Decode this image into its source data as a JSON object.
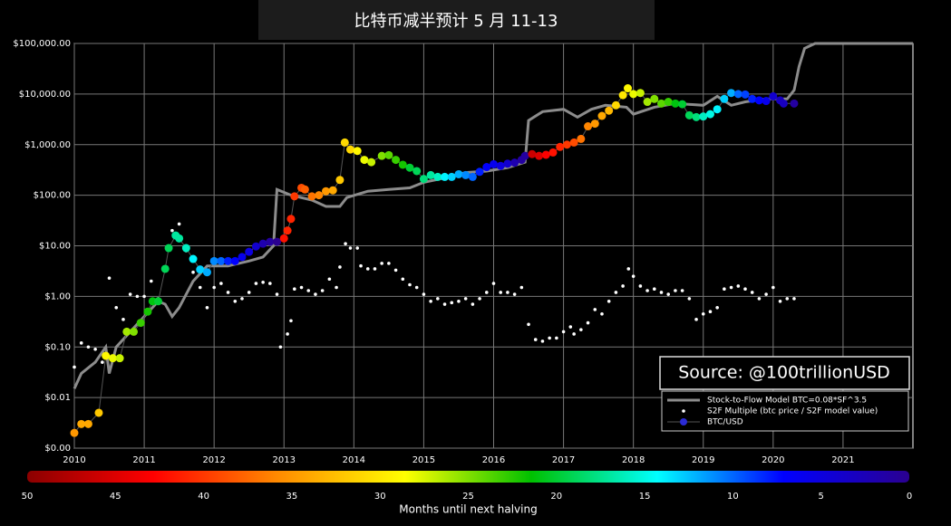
{
  "chart_data": {
    "type": "log-time",
    "title": "比特币减半预计 5 月 11-13",
    "annotation": "Source:  @100trillionUSD",
    "xlim": [
      2010,
      2022
    ],
    "xticks": [
      2010,
      2011,
      2012,
      2013,
      2014,
      2015,
      2016,
      2017,
      2018,
      2019,
      2020,
      2021
    ],
    "ylim": [
      0.001,
      100000
    ],
    "ylog": true,
    "grid": true,
    "legend": "lower-right",
    "yticks": [
      {
        "value": 0.001,
        "label": "$0.00"
      },
      {
        "value": 0.01,
        "label": "$0.01"
      },
      {
        "value": 0.1,
        "label": "$0.10"
      },
      {
        "value": 1,
        "label": "$1.00"
      },
      {
        "value": 10,
        "label": "$10.00"
      },
      {
        "value": 100,
        "label": "$100.00"
      },
      {
        "value": 1000,
        "label": "$1,000.00"
      },
      {
        "value": 10000,
        "label": "$10,000.00"
      },
      {
        "value": 100000,
        "label": "$100,000.00"
      }
    ],
    "series": [
      {
        "name": "Stock-to-Flow Model BTC=0.08*SF^3.5",
        "style": "line",
        "color": "#8c8c8c",
        "x": [
          2010.0,
          2010.1,
          2010.3,
          2010.45,
          2010.5,
          2010.6,
          2010.8,
          2011.0,
          2011.2,
          2011.3,
          2011.4,
          2011.5,
          2011.7,
          2011.9,
          2012.2,
          2012.5,
          2012.7,
          2012.85,
          2012.9,
          2013.1,
          2013.4,
          2013.6,
          2013.8,
          2013.9,
          2014.2,
          2014.5,
          2014.8,
          2015.0,
          2015.3,
          2015.6,
          2015.9,
          2016.2,
          2016.45,
          2016.5,
          2016.7,
          2017.0,
          2017.2,
          2017.4,
          2017.6,
          2017.9,
          2018.0,
          2018.3,
          2018.6,
          2019.0,
          2019.2,
          2019.4,
          2019.6,
          2019.9,
          2020.2,
          2020.3,
          2020.37,
          2020.45,
          2020.6,
          2022.0
        ],
        "values": [
          0.015,
          0.03,
          0.05,
          0.1,
          0.03,
          0.1,
          0.2,
          0.4,
          0.8,
          0.7,
          0.4,
          0.6,
          2,
          4,
          4,
          5,
          6,
          10,
          130,
          100,
          80,
          60,
          60,
          90,
          120,
          130,
          140,
          180,
          220,
          280,
          300,
          350,
          450,
          3000,
          4500,
          5000,
          3500,
          5000,
          6000,
          5500,
          4000,
          5500,
          6500,
          6000,
          9000,
          6000,
          7000,
          8000,
          8000,
          12000,
          35000,
          80000,
          100000,
          100000
        ]
      },
      {
        "name": "S2F Multiple (btc price / S2F model value)",
        "style": "dots",
        "color": "#ffffff",
        "x": [
          2010.0,
          2010.1,
          2010.2,
          2010.3,
          2010.4,
          2010.5,
          2010.6,
          2010.7,
          2010.8,
          2010.9,
          2011.0,
          2011.1,
          2011.2,
          2011.4,
          2011.5,
          2011.6,
          2011.7,
          2011.8,
          2011.9,
          2012.0,
          2012.1,
          2012.2,
          2012.3,
          2012.4,
          2012.5,
          2012.6,
          2012.7,
          2012.8,
          2012.9,
          2012.95,
          2013.05,
          2013.1,
          2013.15,
          2013.25,
          2013.35,
          2013.45,
          2013.55,
          2013.65,
          2013.75,
          2013.8,
          2013.88,
          2013.95,
          2014.05,
          2014.1,
          2014.2,
          2014.3,
          2014.4,
          2014.5,
          2014.6,
          2014.7,
          2014.8,
          2014.9,
          2015.0,
          2015.1,
          2015.2,
          2015.3,
          2015.4,
          2015.5,
          2015.6,
          2015.7,
          2015.8,
          2015.9,
          2016.0,
          2016.1,
          2016.2,
          2016.3,
          2016.4,
          2016.5,
          2016.6,
          2016.7,
          2016.8,
          2016.9,
          2017.0,
          2017.1,
          2017.15,
          2017.25,
          2017.35,
          2017.45,
          2017.55,
          2017.65,
          2017.75,
          2017.85,
          2017.93,
          2018.0,
          2018.1,
          2018.2,
          2018.3,
          2018.4,
          2018.5,
          2018.6,
          2018.7,
          2018.8,
          2018.9,
          2019.0,
          2019.1,
          2019.2,
          2019.3,
          2019.4,
          2019.5,
          2019.6,
          2019.7,
          2019.8,
          2019.9,
          2020.0,
          2020.1,
          2020.2,
          2020.3
        ],
        "values": [
          0.04,
          0.12,
          0.1,
          0.09,
          0.05,
          2.3,
          0.6,
          0.35,
          1.1,
          1.0,
          1.0,
          2,
          0.9,
          20,
          27,
          8,
          3,
          1.5,
          0.6,
          1.5,
          1.8,
          1.2,
          0.8,
          0.9,
          1.2,
          1.8,
          1.9,
          1.8,
          1.1,
          0.1,
          0.18,
          0.33,
          1.4,
          1.5,
          1.3,
          1.1,
          1.3,
          2.2,
          1.5,
          3.8,
          11,
          9,
          9,
          4,
          3.5,
          3.5,
          4.5,
          4.5,
          3.3,
          2.2,
          1.7,
          1.5,
          1.1,
          0.8,
          0.9,
          0.7,
          0.75,
          0.8,
          0.9,
          0.7,
          0.9,
          1.2,
          1.8,
          1.2,
          1.2,
          1.1,
          1.5,
          0.28,
          0.14,
          0.13,
          0.15,
          0.15,
          0.2,
          0.25,
          0.18,
          0.22,
          0.3,
          0.55,
          0.45,
          0.8,
          1.2,
          1.6,
          3.5,
          2.5,
          1.6,
          1.3,
          1.4,
          1.2,
          1.1,
          1.3,
          1.3,
          0.9,
          0.35,
          0.45,
          0.5,
          0.6,
          1.4,
          1.5,
          1.6,
          1.4,
          1.2,
          0.9,
          1.1,
          1.5,
          0.8,
          0.9,
          0.9
        ]
      },
      {
        "name": "BTC/USD",
        "style": "colored-dots",
        "color": "#2b2bd6",
        "x": [
          2010.0,
          2010.1,
          2010.2,
          2010.35,
          2010.45,
          2010.55,
          2010.65,
          2010.75,
          2010.85,
          2010.95,
          2011.05,
          2011.12,
          2011.2,
          2011.3,
          2011.35,
          2011.45,
          2011.5,
          2011.6,
          2011.7,
          2011.8,
          2011.9,
          2012.0,
          2012.1,
          2012.2,
          2012.3,
          2012.4,
          2012.5,
          2012.6,
          2012.7,
          2012.8,
          2012.9,
          2013.0,
          2013.05,
          2013.1,
          2013.15,
          2013.25,
          2013.3,
          2013.4,
          2013.5,
          2013.6,
          2013.7,
          2013.8,
          2013.87,
          2013.95,
          2014.05,
          2014.15,
          2014.25,
          2014.4,
          2014.5,
          2014.6,
          2014.7,
          2014.8,
          2014.9,
          2015.0,
          2015.1,
          2015.2,
          2015.3,
          2015.4,
          2015.5,
          2015.6,
          2015.7,
          2015.8,
          2015.9,
          2016.0,
          2016.1,
          2016.2,
          2016.3,
          2016.4,
          2016.45,
          2016.55,
          2016.65,
          2016.75,
          2016.85,
          2016.95,
          2017.05,
          2017.15,
          2017.25,
          2017.35,
          2017.45,
          2017.55,
          2017.65,
          2017.75,
          2017.85,
          2017.92,
          2018.0,
          2018.1,
          2018.2,
          2018.3,
          2018.4,
          2018.5,
          2018.6,
          2018.7,
          2018.8,
          2018.9,
          2019.0,
          2019.1,
          2019.2,
          2019.3,
          2019.4,
          2019.5,
          2019.6,
          2019.7,
          2019.8,
          2019.9,
          2020.0,
          2020.1,
          2020.15,
          2020.3
        ],
        "values": [
          0.002,
          0.003,
          0.003,
          0.005,
          0.067,
          0.06,
          0.06,
          0.2,
          0.2,
          0.3,
          0.5,
          0.8,
          0.8,
          3.5,
          9,
          16,
          14,
          9,
          5.5,
          3.4,
          3,
          5,
          5,
          5,
          5,
          6,
          7.6,
          9.7,
          11,
          12,
          12,
          14,
          20,
          34,
          95,
          140,
          130,
          95,
          100,
          120,
          125,
          200,
          1100,
          800,
          750,
          500,
          450,
          600,
          620,
          500,
          400,
          350,
          300,
          210,
          250,
          230,
          230,
          230,
          260,
          250,
          230,
          290,
          360,
          410,
          380,
          420,
          440,
          500,
          600,
          650,
          600,
          630,
          700,
          900,
          1000,
          1100,
          1300,
          2300,
          2600,
          3700,
          4700,
          6000,
          9500,
          13000,
          10000,
          10500,
          7000,
          8000,
          6500,
          7000,
          6500,
          6300,
          3800,
          3500,
          3600,
          4000,
          5000,
          8000,
          10500,
          10000,
          9800,
          8000,
          7500,
          7300,
          9000,
          7500,
          6500,
          6500
        ],
        "months_until_halving": [
          35,
          34,
          34,
          32,
          29,
          28,
          27,
          26,
          25,
          23,
          22,
          21,
          20,
          19,
          19,
          17,
          17,
          16,
          14,
          13,
          12,
          11,
          10,
          8,
          7,
          6,
          5,
          4,
          2,
          1,
          0,
          42,
          41,
          41,
          40,
          39,
          38,
          37,
          36,
          35,
          34,
          32,
          31,
          31,
          29,
          28,
          27,
          25,
          24,
          23,
          22,
          20,
          19,
          18,
          17,
          16,
          14,
          13,
          12,
          11,
          10,
          8,
          7,
          6,
          5,
          4,
          2,
          1,
          1,
          46,
          45,
          43,
          42,
          41,
          40,
          39,
          37,
          36,
          35,
          34,
          33,
          31,
          30,
          29,
          28,
          27,
          26,
          25,
          24,
          23,
          21,
          20,
          19,
          18,
          16,
          15,
          14,
          13,
          12,
          10,
          9,
          8,
          7,
          6,
          4,
          3,
          3,
          1
        ]
      }
    ],
    "colorbar": {
      "label": "Months until next halving",
      "lim": [
        50,
        0
      ],
      "ticks": [
        50,
        45,
        40,
        35,
        30,
        25,
        20,
        15,
        10,
        5,
        0
      ],
      "colormap": [
        "#8b0000",
        "#ff0000",
        "#ff8c00",
        "#ffff00",
        "#00c000",
        "#00ffff",
        "#0000ff",
        "#2a0090"
      ]
    }
  }
}
